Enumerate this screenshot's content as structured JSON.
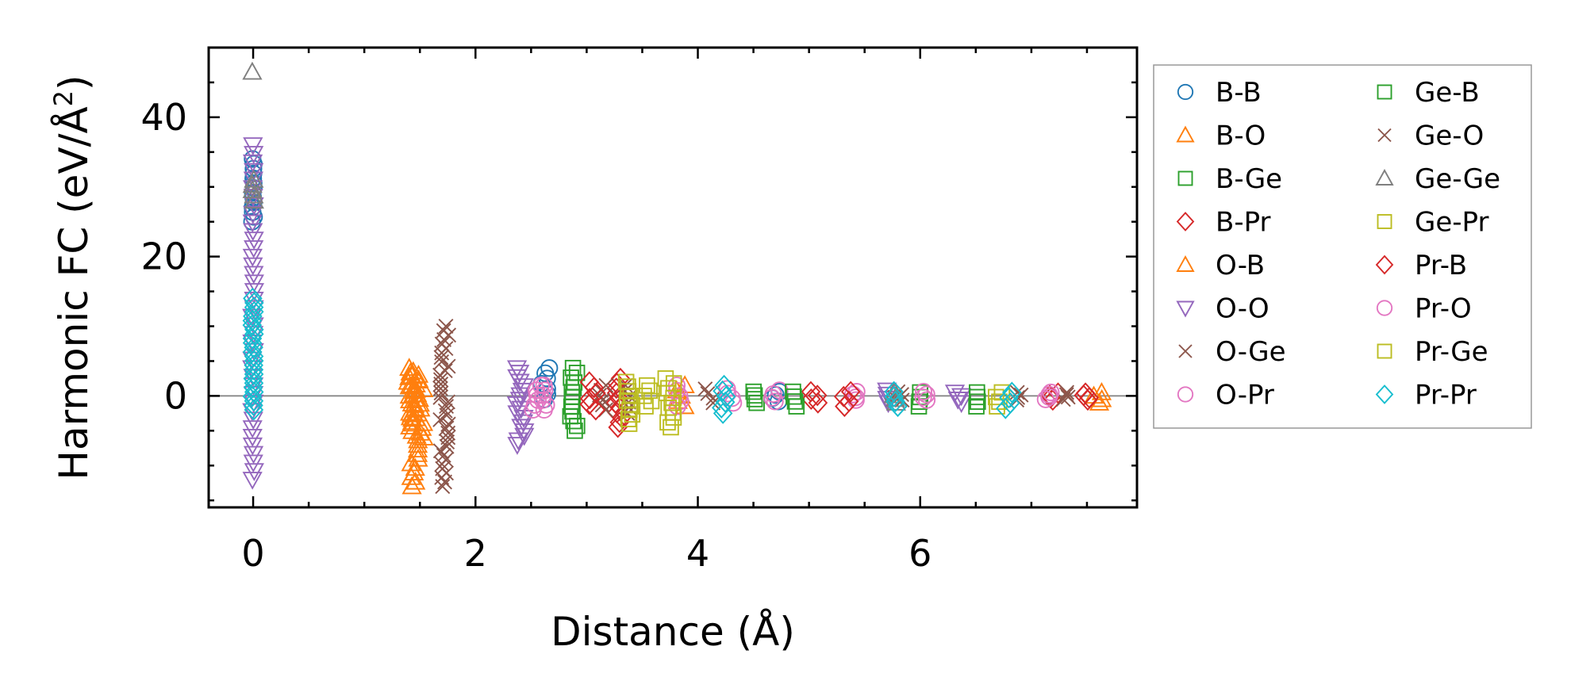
{
  "chart_data": {
    "type": "scatter",
    "title": "",
    "xlabel": "Distance (Å)",
    "ylabel_main": "Harmonic FC (eV/Å",
    "ylabel_sup": "2",
    "ylabel_end": ")",
    "xlim": [
      -0.4,
      7.95
    ],
    "ylim": [
      -16,
      50
    ],
    "xticks": [
      0,
      2,
      4,
      6
    ],
    "xtick_labels": [
      "0",
      "2",
      "4",
      "6"
    ],
    "yticks": [
      0,
      20,
      40
    ],
    "ytick_labels": [
      "0",
      "20",
      "40"
    ],
    "x_minor_step": 0.5,
    "y_minor_step": 5,
    "zero_line": true,
    "legend_position": "outside-right",
    "legend_columns": 2,
    "series": [
      {
        "name": "B-B",
        "marker": "circle",
        "color": "#1f77b4",
        "groups": [
          {
            "x": 0,
            "ymin": 25,
            "ymax": 34
          },
          {
            "x": 2.63,
            "ymin": -0.5,
            "ymax": 4
          },
          {
            "x": 4.7,
            "ymin": -0.8,
            "ymax": 0.6
          }
        ]
      },
      {
        "name": "B-O",
        "marker": "triangle-up",
        "color": "#ff7f0e",
        "groups": [
          {
            "x": 1.42,
            "ymin": -4,
            "ymax": 4
          },
          {
            "x": 1.5,
            "ymin": -6,
            "ymax": 3
          }
        ]
      },
      {
        "name": "B-Ge",
        "marker": "square",
        "color": "#2ca02c",
        "groups": [
          {
            "x": 2.88,
            "ymin": -5,
            "ymax": 4
          },
          {
            "x": 4.5,
            "ymin": -1,
            "ymax": 0.6
          }
        ]
      },
      {
        "name": "B-Pr",
        "marker": "diamond",
        "color": "#d62728",
        "groups": [
          {
            "x": 3.28,
            "ymin": -4.5,
            "ymax": 2.5
          },
          {
            "x": 5.05,
            "ymin": -1,
            "ymax": 0.6
          },
          {
            "x": 7.2,
            "ymin": -0.6,
            "ymax": 0.4
          }
        ]
      },
      {
        "name": "O-B",
        "marker": "triangle-up",
        "color": "#ff7f0e",
        "groups": [
          {
            "x": 1.45,
            "ymin": -13,
            "ymax": 3.5
          },
          {
            "x": 3.85,
            "ymin": -1.5,
            "ymax": 1.5
          },
          {
            "x": 7.6,
            "ymin": -1,
            "ymax": 0.5
          }
        ]
      },
      {
        "name": "O-O",
        "marker": "triangle-down",
        "color": "#9467bd",
        "groups": [
          {
            "x": 0,
            "ymin": -12,
            "ymax": 36
          },
          {
            "x": 2.4,
            "ymin": -7,
            "ymax": 4
          },
          {
            "x": 5.7,
            "ymin": -1,
            "ymax": 0.8
          },
          {
            "x": 6.35,
            "ymin": -1,
            "ymax": 0.5
          }
        ]
      },
      {
        "name": "O-Ge",
        "marker": "cross",
        "color": "#8c564b",
        "groups": [
          {
            "x": 1.72,
            "ymin": -13,
            "ymax": 10
          },
          {
            "x": 3.15,
            "ymin": -2,
            "ymax": 1.5
          },
          {
            "x": 5.8,
            "ymin": -0.6,
            "ymax": 0.6
          },
          {
            "x": 6.9,
            "ymin": -0.6,
            "ymax": 0.5
          }
        ]
      },
      {
        "name": "O-Pr",
        "marker": "circle",
        "color": "#e377c2",
        "groups": [
          {
            "x": 2.55,
            "ymin": -2,
            "ymax": 1.5
          },
          {
            "x": 3.85,
            "ymin": -1.5,
            "ymax": 1.5
          },
          {
            "x": 4.7,
            "ymin": -0.8,
            "ymax": 0.8
          },
          {
            "x": 5.4,
            "ymin": -0.6,
            "ymax": 0.6
          }
        ]
      },
      {
        "name": "Ge-B",
        "marker": "square",
        "color": "#2ca02c",
        "groups": [
          {
            "x": 4.85,
            "ymin": -1.5,
            "ymax": 0.6
          },
          {
            "x": 6.0,
            "ymin": -1.5,
            "ymax": 0.5
          },
          {
            "x": 6.5,
            "ymin": -1.5,
            "ymax": 0.5
          }
        ]
      },
      {
        "name": "Ge-O",
        "marker": "cross",
        "color": "#8c564b",
        "groups": [
          {
            "x": 3.35,
            "ymin": -2.5,
            "ymax": 1.5
          },
          {
            "x": 4.1,
            "ymin": -1,
            "ymax": 1
          },
          {
            "x": 7.3,
            "ymin": -0.5,
            "ymax": 0.5
          }
        ]
      },
      {
        "name": "Ge-Ge",
        "marker": "triangle-up",
        "color": "#7f7f7f",
        "groups": [
          {
            "x": 0,
            "ymin": 28,
            "ymax": 31
          },
          {
            "x": 0,
            "ymin": 46.5,
            "ymax": 46.5
          },
          {
            "x": 5.75,
            "ymin": -1,
            "ymax": 0.6
          }
        ]
      },
      {
        "name": "Ge-Pr",
        "marker": "square",
        "color": "#bcbd22",
        "groups": [
          {
            "x": 3.38,
            "ymin": -4,
            "ymax": 2
          },
          {
            "x": 3.75,
            "ymin": -4.5,
            "ymax": 2.5
          },
          {
            "x": 6.72,
            "ymin": -1.5,
            "ymax": 0.5
          }
        ]
      },
      {
        "name": "Pr-B",
        "marker": "diamond",
        "color": "#d62728",
        "groups": [
          {
            "x": 3.05,
            "ymin": -2,
            "ymax": 2
          },
          {
            "x": 5.35,
            "ymin": -1.5,
            "ymax": 0.6
          },
          {
            "x": 7.5,
            "ymin": -0.6,
            "ymax": 0.4
          }
        ]
      },
      {
        "name": "Pr-O",
        "marker": "circle",
        "color": "#e377c2",
        "groups": [
          {
            "x": 2.6,
            "ymin": -2,
            "ymax": 1.5
          },
          {
            "x": 4.3,
            "ymin": -1,
            "ymax": 1
          },
          {
            "x": 6.05,
            "ymin": -0.6,
            "ymax": 0.6
          },
          {
            "x": 7.15,
            "ymin": -0.5,
            "ymax": 0.5
          }
        ]
      },
      {
        "name": "Pr-Ge",
        "marker": "square",
        "color": "#bcbd22",
        "groups": [
          {
            "x": 3.55,
            "ymin": -1.5,
            "ymax": 1.5
          }
        ]
      },
      {
        "name": "Pr-Pr",
        "marker": "diamond",
        "color": "#17becf",
        "groups": [
          {
            "x": 0,
            "ymin": -2,
            "ymax": 14
          },
          {
            "x": 4.25,
            "ymin": -2.5,
            "ymax": 1.5
          },
          {
            "x": 5.8,
            "ymin": -1.5,
            "ymax": 0.6
          },
          {
            "x": 6.8,
            "ymin": -1.8,
            "ymax": 0.5
          }
        ]
      }
    ]
  }
}
